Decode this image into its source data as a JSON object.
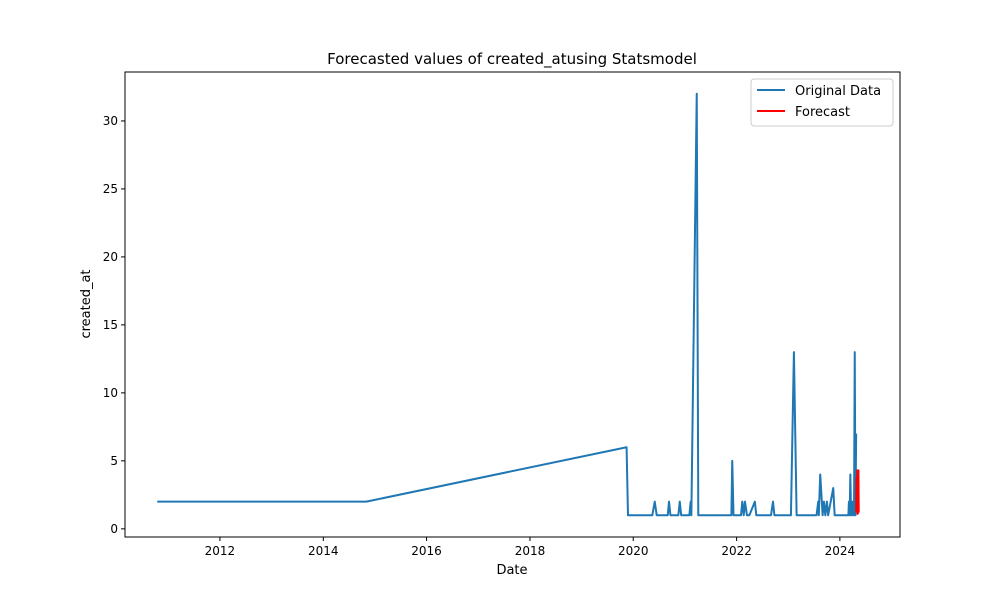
{
  "chart_data": {
    "type": "line",
    "title": "Forecasted values of created_atusing Statsmodel",
    "xlabel": "Date",
    "ylabel": "created_at",
    "x_ticks": [
      "2012",
      "2014",
      "2016",
      "2018",
      "2020",
      "2022",
      "2024"
    ],
    "y_ticks": [
      "0",
      "5",
      "10",
      "15",
      "20",
      "25",
      "30"
    ],
    "xlim": [
      "2010-03-01",
      "2025-03-01"
    ],
    "ylim": [
      -0.6,
      33.6
    ],
    "grid": false,
    "legend_position": "top-right",
    "series": [
      {
        "name": "Original Data",
        "color": "#1f77b4",
        "x": [
          "2010-10-15",
          "2014-11-01",
          "2019-11-15",
          "2019-11-25",
          "2020-05-15",
          "2020-06-01",
          "2020-06-15",
          "2020-09-01",
          "2020-09-10",
          "2020-09-20",
          "2020-11-15",
          "2020-11-25",
          "2020-12-05",
          "2021-02-01",
          "2021-02-10",
          "2021-02-15",
          "2021-03-25",
          "2021-04-05",
          "2021-04-20",
          "2021-11-25",
          "2021-12-01",
          "2021-12-10",
          "2022-02-01",
          "2022-02-10",
          "2022-02-20",
          "2022-03-01",
          "2022-03-15",
          "2022-04-01",
          "2022-05-10",
          "2022-05-20",
          "2022-06-01",
          "2022-09-01",
          "2022-09-15",
          "2022-09-25",
          "2023-01-20",
          "2023-02-10",
          "2023-03-01",
          "2023-07-20",
          "2023-08-01",
          "2023-08-05",
          "2023-08-15",
          "2023-09-01",
          "2023-09-10",
          "2023-09-20",
          "2023-10-01",
          "2023-10-10",
          "2023-11-15",
          "2023-11-25",
          "2024-03-01",
          "2024-03-05",
          "2024-03-10",
          "2024-03-15",
          "2024-03-20",
          "2024-03-25",
          "2024-04-01",
          "2024-04-05",
          "2024-04-10",
          "2024-04-15",
          "2024-04-20",
          "2024-04-25"
        ],
        "y": [
          2,
          2,
          6,
          1,
          1,
          2,
          1,
          1,
          2,
          1,
          1,
          2,
          1,
          1,
          2,
          1,
          32,
          1,
          1,
          1,
          5,
          1,
          1,
          2,
          1,
          2,
          1,
          1,
          2,
          1,
          1,
          1,
          2,
          1,
          1,
          13,
          1,
          1,
          2,
          1,
          4,
          1,
          2,
          1,
          2,
          1,
          3,
          1,
          1,
          2,
          1,
          4,
          1,
          2,
          1,
          2,
          1,
          13,
          1,
          7
        ]
      },
      {
        "name": "Forecast",
        "color": "#ff0000",
        "x": [
          "2024-04-25",
          "2024-04-28",
          "2024-05-01",
          "2024-05-03",
          "2024-05-05",
          "2024-05-07",
          "2024-05-09",
          "2024-05-11",
          "2024-05-13",
          "2024-05-15"
        ],
        "y": [
          1.2,
          3.8,
          1.4,
          4.3,
          1.1,
          4.0,
          1.3,
          4.3,
          1.2,
          1.2
        ]
      }
    ]
  }
}
